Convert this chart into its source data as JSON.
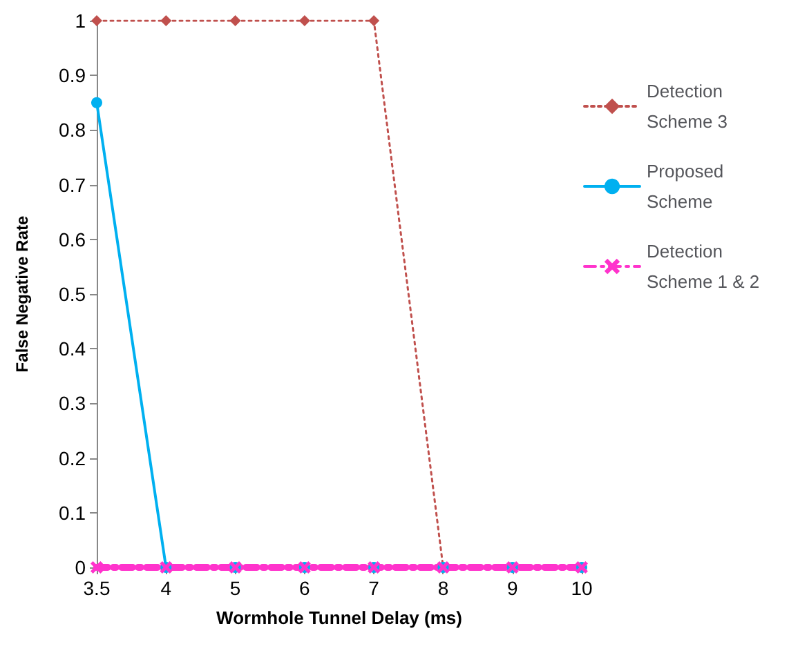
{
  "chart_data": {
    "type": "line",
    "xlabel": "Wormhole Tunnel Delay (ms)",
    "ylabel": "False Negative Rate",
    "categories": [
      "3.5",
      "4",
      "5",
      "6",
      "7",
      "8",
      "9",
      "10"
    ],
    "series": [
      {
        "name": "Detection Scheme 3",
        "color": "#c0504d",
        "marker": "diamond",
        "line_style": "dotted",
        "values": [
          1,
          1,
          1,
          1,
          1,
          0,
          0,
          0
        ]
      },
      {
        "name": "Proposed Scheme",
        "color": "#00b0f0",
        "marker": "circle",
        "line_style": "solid",
        "values": [
          0.85,
          0,
          0,
          0,
          0,
          0,
          0,
          0
        ]
      },
      {
        "name": "Detection Scheme 1 & 2",
        "color": "#ff33cc",
        "marker": "cross",
        "line_style": "dashed",
        "values": [
          0,
          0,
          0,
          0,
          0,
          0,
          0,
          0
        ]
      }
    ],
    "ylim": [
      0,
      1
    ],
    "yticks": [
      0,
      0.1,
      0.2,
      0.3,
      0.4,
      0.5,
      0.6,
      0.7,
      0.8,
      0.9,
      1
    ],
    "grid": false,
    "legend": "right"
  }
}
